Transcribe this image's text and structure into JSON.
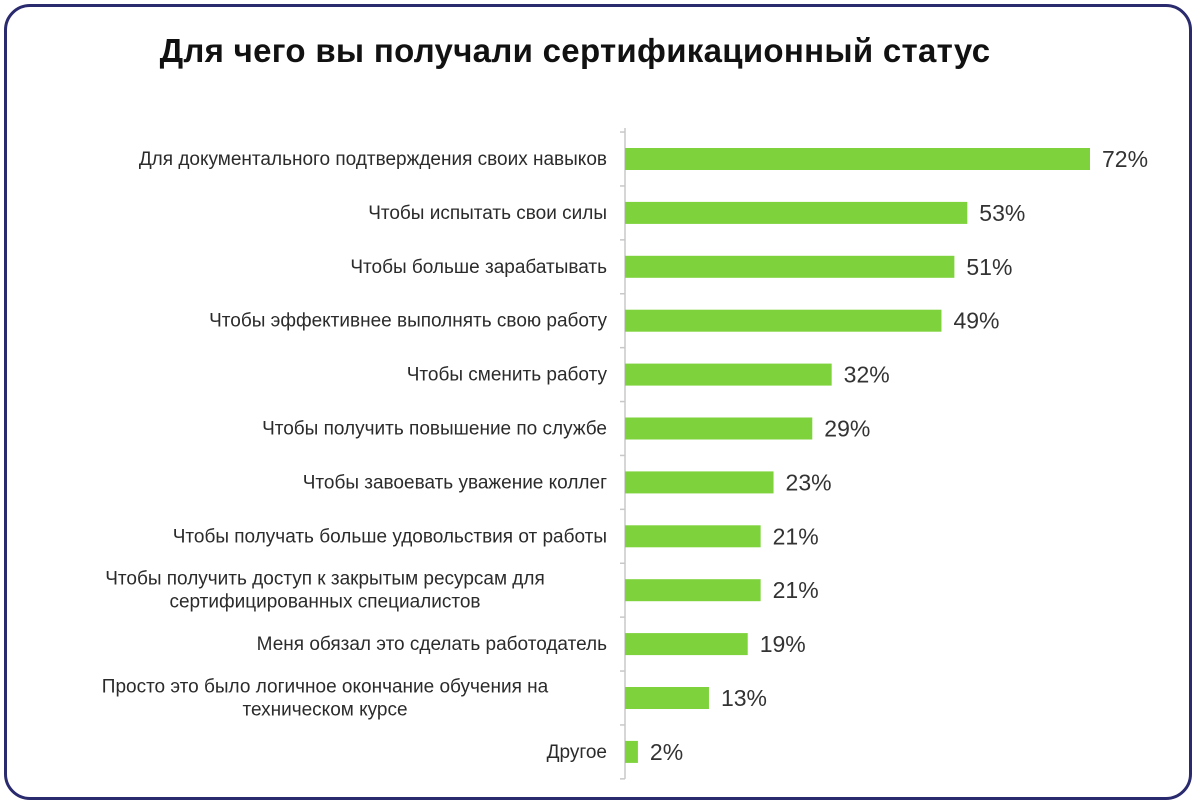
{
  "chart_data": {
    "type": "bar",
    "orientation": "horizontal",
    "title": "Для чего вы получали сертификационный статус",
    "categories": [
      [
        "Для документального подтверждения своих навыков"
      ],
      [
        "Чтобы испытать свои силы"
      ],
      [
        "Чтобы больше зарабатывать"
      ],
      [
        "Чтобы эффективнее выполнять свою работу"
      ],
      [
        "Чтобы сменить работу"
      ],
      [
        "Чтобы получить повышение по службе"
      ],
      [
        "Чтобы завоевать уважение коллег"
      ],
      [
        "Чтобы получать больше удовольствия от работы"
      ],
      [
        "Чтобы получить доступ к закрытым ресурсам для",
        "сертифицированных специалистов"
      ],
      [
        "Меня обязал это сделать работодатель"
      ],
      [
        "Просто это было логичное окончание обучения на",
        "техническом курсе"
      ],
      [
        "Другое"
      ]
    ],
    "values": [
      72,
      53,
      51,
      49,
      32,
      29,
      23,
      21,
      21,
      19,
      13,
      2
    ],
    "value_labels": [
      "72%",
      "53%",
      "51%",
      "49%",
      "32%",
      "29%",
      "23%",
      "21%",
      "21%",
      "19%",
      "13%",
      "2%"
    ],
    "unit": "%",
    "xlim": [
      0,
      72
    ],
    "grid": false,
    "legend": "none",
    "colors": {
      "bar": "#7ed23c",
      "axis": "#c8c8c8",
      "frame": "#2a2a6e"
    }
  }
}
